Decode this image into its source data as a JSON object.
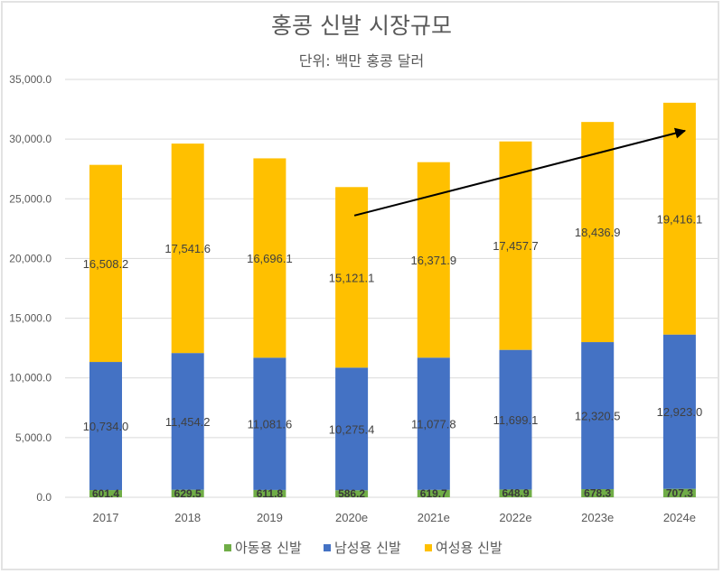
{
  "chart_data": {
    "type": "bar",
    "stacked": true,
    "title": "홍콩 신발 시장규모",
    "subtitle": "단위: 백만 홍콩 달러",
    "xlabel": "",
    "ylabel": "",
    "ylim": [
      0,
      35000
    ],
    "yticks": [
      "0.0",
      "5,000.0",
      "10,000.0",
      "15,000.0",
      "20,000.0",
      "25,000.0",
      "30,000.0",
      "35,000.0"
    ],
    "ytick_values": [
      0,
      5000,
      10000,
      15000,
      20000,
      25000,
      30000,
      35000
    ],
    "grid": true,
    "legend_position": "bottom",
    "categories": [
      "2017",
      "2018",
      "2019",
      "2020e",
      "2021e",
      "2022e",
      "2023e",
      "2024e"
    ],
    "series": [
      {
        "name": "아동용 신발",
        "color": "#70AD47",
        "values": [
          601.4,
          629.5,
          611.8,
          586.2,
          619.7,
          648.9,
          678.3,
          707.3
        ],
        "labels": [
          "601.4",
          "629.5",
          "611.8",
          "586.2",
          "619.7",
          "648.9",
          "678.3",
          "707.3"
        ]
      },
      {
        "name": "남성용 신발",
        "color": "#4472C4",
        "values": [
          10734.0,
          11454.2,
          11081.6,
          10275.4,
          11077.8,
          11699.1,
          12320.5,
          12923.0
        ],
        "labels": [
          "10,734.0",
          "11,454.2",
          "11,081.6",
          "10,275.4",
          "11,077.8",
          "11,699.1",
          "12,320.5",
          "12,923.0"
        ]
      },
      {
        "name": "여성용 신발",
        "color": "#FFC000",
        "values": [
          16508.2,
          17541.6,
          16696.1,
          15121.1,
          16371.9,
          17457.7,
          18436.9,
          19416.1
        ],
        "labels": [
          "16,508.2",
          "17,541.6",
          "16,696.1",
          "15,121.1",
          "16,371.9",
          "17,457.7",
          "18,436.9",
          "19,416.1"
        ]
      }
    ],
    "annotations": [
      {
        "type": "arrow",
        "from": {
          "category": "2020e",
          "value": 23600
        },
        "to": {
          "category": "2024e",
          "value": 30700
        }
      }
    ]
  },
  "colors": {
    "text": "#595959",
    "grid": "#d9d9d9",
    "arrow": "#000000"
  }
}
